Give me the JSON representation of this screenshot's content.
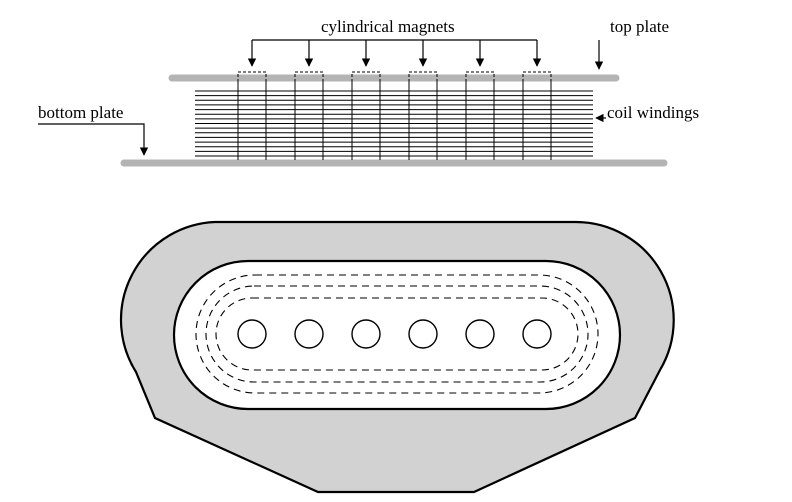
{
  "labels": {
    "cylindrical_magnets": "cylindrical magnets",
    "top_plate": "top plate",
    "bottom_plate": "bottom plate",
    "coil_windings": "coil windings"
  },
  "magnet_count": 6,
  "colors": {
    "plate": "#b4b4b4",
    "frame_fill": "#d2d2d2",
    "line": "#000000",
    "background": "#ffffff"
  }
}
